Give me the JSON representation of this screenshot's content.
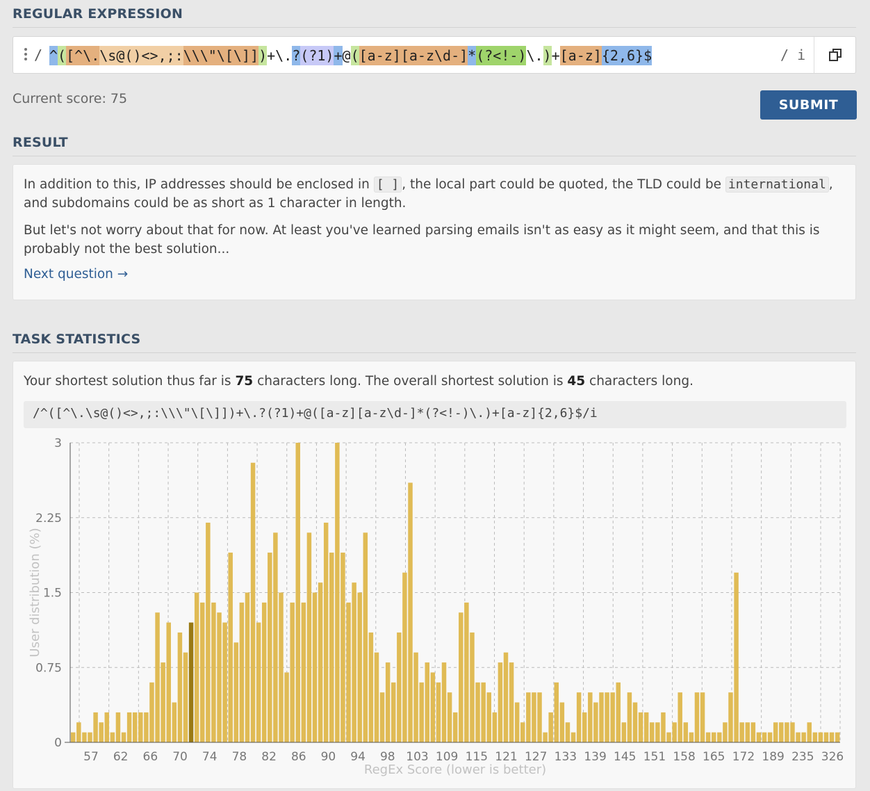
{
  "sections": {
    "regex_title": "REGULAR EXPRESSION",
    "result_title": "RESULT",
    "stats_title": "TASK STATISTICS"
  },
  "editor": {
    "open_slash": "/",
    "flags": "/ i",
    "tokens": [
      {
        "text": "^",
        "bg": "#8fb8ea"
      },
      {
        "text": "(",
        "bg": "#c6e59e"
      },
      {
        "text": "[^\\.",
        "bg": "#e4b07e"
      },
      {
        "text": "\\s",
        "bg": "#f1cfa5"
      },
      {
        "text": "@()<>,;:",
        "bg": "#f1cfa5"
      },
      {
        "text": "\\\\\\\"\\[\\]",
        "bg": "#e4b07e"
      },
      {
        "text": "]",
        "bg": "#e4b07e"
      },
      {
        "text": ")",
        "bg": "#c6e59e"
      },
      {
        "text": "+",
        "bg": "#ffffff"
      },
      {
        "text": "\\.",
        "bg": "#ffffff"
      },
      {
        "text": "?",
        "bg": "#8fb8ea"
      },
      {
        "text": "(?1)",
        "bg": "#c7c9f7"
      },
      {
        "text": "+",
        "bg": "#8fb8ea"
      },
      {
        "text": "@",
        "bg": "#ffffff"
      },
      {
        "text": "(",
        "bg": "#c6e59e"
      },
      {
        "text": "[a-z]",
        "bg": "#e4b07e"
      },
      {
        "text": "[a-z\\d-]",
        "bg": "#e4b07e"
      },
      {
        "text": "*",
        "bg": "#8fb8ea"
      },
      {
        "text": "(?<!-)",
        "bg": "#9fd46b"
      },
      {
        "text": "\\.",
        "bg": "#ffffff"
      },
      {
        "text": ")",
        "bg": "#c6e59e"
      },
      {
        "text": "+",
        "bg": "#ffffff"
      },
      {
        "text": "[a-z]",
        "bg": "#e4b07e"
      },
      {
        "text": "{2,6}",
        "bg": "#8fb8ea"
      },
      {
        "text": "$",
        "bg": "#8fb8ea"
      }
    ]
  },
  "score": {
    "text": "Current score: 75"
  },
  "submit": {
    "label": "SUBMIT"
  },
  "result": {
    "p1_a": "In addition to this, IP addresses should be enclosed in ",
    "p1_code1": "[ ]",
    "p1_b": ", the local part could be quoted, the TLD could be ",
    "p1_code2": "international",
    "p1_c": ", and subdomains could be as short as 1 character in length.",
    "p2": "But let's not worry about that for now. At least you've learned parsing emails isn't as easy as it might seem, and that this is probably not the best solution...",
    "next_link": "Next question →"
  },
  "stats": {
    "line_a": "Your shortest solution thus far is ",
    "your_len": "75",
    "line_b": " characters long. The overall shortest solution is ",
    "best_len": "45",
    "line_c": " characters long.",
    "solution": "/^([^\\.\\s@()<>,;:\\\\\\\"\\[\\]])+\\.?(?1)+@([a-z][a-z\\d-]*(?<!-)\\.)+[a-z]{2,6}$/i"
  },
  "colors": {
    "bar": "#e0bb55",
    "bar_highlight": "#9a7a14",
    "axis_text": "#777",
    "label_text": "#c2c2c2"
  },
  "chart_data": {
    "type": "bar",
    "xlabel": "RegEx Score (lower is better)",
    "ylabel": "User distribution (%)",
    "ylim": [
      0,
      3
    ],
    "yticks": [
      "0",
      "0.75",
      "1.5",
      "2.25",
      "3"
    ],
    "xticks": [
      "57",
      "62",
      "66",
      "70",
      "74",
      "78",
      "82",
      "86",
      "90",
      "94",
      "98",
      "103",
      "109",
      "115",
      "121",
      "127",
      "133",
      "139",
      "145",
      "151",
      "158",
      "165",
      "172",
      "189",
      "235",
      "326"
    ],
    "highlight_score": 75,
    "values": [
      0.1,
      0.2,
      0.1,
      0.1,
      0.3,
      0.2,
      0.3,
      0.1,
      0.3,
      0.1,
      0.3,
      0.3,
      0.3,
      0.3,
      0.6,
      1.3,
      0.8,
      1.2,
      0.4,
      1.1,
      0.9,
      1.2,
      1.5,
      1.4,
      2.2,
      1.4,
      1.3,
      1.2,
      1.9,
      1.0,
      1.4,
      1.5,
      2.8,
      1.2,
      1.4,
      1.9,
      2.1,
      1.5,
      0.7,
      1.4,
      3.0,
      1.4,
      2.1,
      1.5,
      1.6,
      2.2,
      1.9,
      3.0,
      1.9,
      1.4,
      1.6,
      1.5,
      2.1,
      1.1,
      0.9,
      0.5,
      0.8,
      0.6,
      1.1,
      1.7,
      2.6,
      0.9,
      0.6,
      0.8,
      0.7,
      0.6,
      0.8,
      0.5,
      0.3,
      1.3,
      1.4,
      1.1,
      0.6,
      0.6,
      0.5,
      0.3,
      0.8,
      0.9,
      0.8,
      0.4,
      0.2,
      0.5,
      0.5,
      0.5,
      0.1,
      0.3,
      0.6,
      0.4,
      0.2,
      0.1,
      0.5,
      0.3,
      0.5,
      0.4,
      0.5,
      0.5,
      0.5,
      0.6,
      0.2,
      0.5,
      0.4,
      0.3,
      0.3,
      0.2,
      0.2,
      0.3,
      0.1,
      0.2,
      0.5,
      0.2,
      0.1,
      0.5,
      0.5,
      0.1,
      0.1,
      0.1,
      0.2,
      0.5,
      1.7,
      0.2,
      0.2,
      0.2,
      0.1,
      0.1,
      0.1,
      0.2,
      0.2,
      0.2,
      0.2,
      0.1,
      0.1,
      0.2,
      0.1,
      0.1,
      0.1,
      0.1,
      0.1
    ]
  }
}
